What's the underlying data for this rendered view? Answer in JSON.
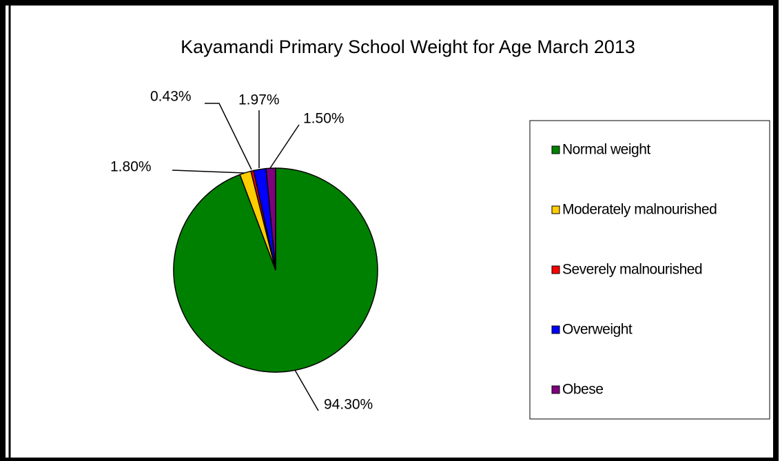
{
  "chart_data": {
    "type": "pie",
    "title": "Kayamandi Primary School  Weight for Age March 2013",
    "categories": [
      "Normal weight",
      "Moderately malnourished",
      "Severely malnourished",
      "Overweight",
      "Obese"
    ],
    "values": [
      94.3,
      1.8,
      0.43,
      1.97,
      1.5
    ],
    "value_labels": [
      "94.30%",
      "1.80%",
      "0.43%",
      "1.97%",
      "1.50%"
    ],
    "colors": [
      "#008000",
      "#ffcc00",
      "#ff0000",
      "#0000ff",
      "#800080"
    ],
    "legend": "right"
  }
}
